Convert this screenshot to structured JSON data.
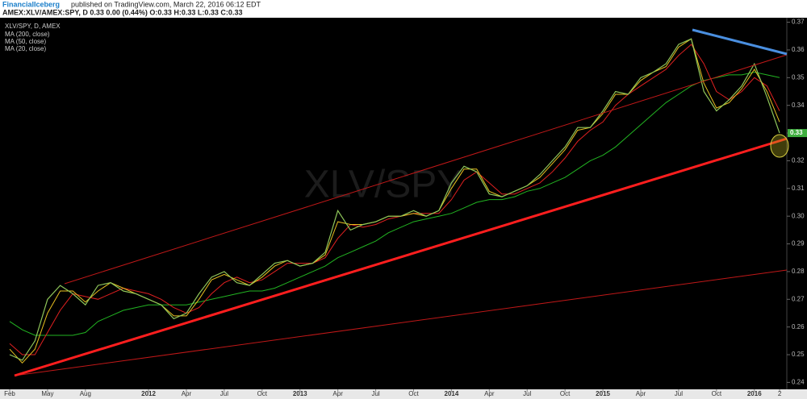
{
  "header": {
    "author": "FinancialIceberg",
    "published": "published on TradingView.com, March 22, 2016 06:12 EDT",
    "quote": "AMEX:XLV/AMEX:SPY, D 0.33 0.00 (0.44%) O:0.33 H:0.33 L:0.33 C:0.33"
  },
  "chart_data": {
    "type": "line",
    "title": "XLV/SPY, D, AMEX",
    "watermark": "XLV/SPY",
    "categories": [
      "Feb",
      null,
      null,
      "May",
      null,
      null,
      "Aug",
      null,
      null,
      null,
      null,
      "2012",
      null,
      null,
      "Apr",
      null,
      null,
      "Jul",
      null,
      null,
      "Oct",
      null,
      null,
      "2013",
      null,
      null,
      "Apr",
      null,
      null,
      "Jul",
      null,
      null,
      "Oct",
      null,
      null,
      "2014",
      null,
      null,
      "Apr",
      null,
      null,
      "Jul",
      null,
      null,
      "Oct",
      null,
      null,
      "2015",
      null,
      null,
      "Apr",
      null,
      null,
      "Jul",
      null,
      null,
      "Oct",
      null,
      null,
      "2016",
      null,
      "2"
    ],
    "series": [
      {
        "name": "XLV/SPY",
        "color": "#8fc65a",
        "values": [
          0.25,
          0.248,
          0.255,
          0.27,
          0.275,
          0.272,
          0.268,
          0.275,
          0.276,
          0.273,
          0.272,
          0.27,
          0.268,
          0.263,
          0.265,
          0.272,
          0.278,
          0.28,
          0.276,
          0.275,
          0.279,
          0.283,
          0.284,
          0.282,
          0.283,
          0.287,
          0.302,
          0.295,
          0.297,
          0.298,
          0.3,
          0.3,
          0.302,
          0.3,
          0.302,
          0.312,
          0.318,
          0.316,
          0.308,
          0.307,
          0.309,
          0.311,
          0.315,
          0.32,
          0.325,
          0.332,
          0.332,
          0.338,
          0.345,
          0.344,
          0.35,
          0.352,
          0.355,
          0.362,
          0.364,
          0.345,
          0.338,
          0.342,
          0.347,
          0.355,
          0.343,
          0.33
        ]
      },
      {
        "name": "MA (200, close)",
        "color": "#22b422",
        "values": [
          0.262,
          0.259,
          0.257,
          0.257,
          0.257,
          0.257,
          0.258,
          0.262,
          0.264,
          0.266,
          0.267,
          0.268,
          0.268,
          0.268,
          0.268,
          0.269,
          0.27,
          0.271,
          0.272,
          0.273,
          0.273,
          0.274,
          0.276,
          0.278,
          0.28,
          0.282,
          0.285,
          0.287,
          0.289,
          0.291,
          0.294,
          0.296,
          0.298,
          0.299,
          0.3,
          0.301,
          0.303,
          0.305,
          0.306,
          0.306,
          0.307,
          0.309,
          0.31,
          0.312,
          0.314,
          0.317,
          0.32,
          0.322,
          0.325,
          0.329,
          0.333,
          0.337,
          0.341,
          0.344,
          0.347,
          0.349,
          0.35,
          0.351,
          0.351,
          0.352,
          0.351,
          0.35
        ]
      },
      {
        "name": "MA (50, close)",
        "color": "#e02020",
        "values": [
          0.254,
          0.25,
          0.25,
          0.258,
          0.266,
          0.272,
          0.271,
          0.27,
          0.272,
          0.274,
          0.273,
          0.272,
          0.27,
          0.267,
          0.265,
          0.267,
          0.272,
          0.276,
          0.278,
          0.276,
          0.277,
          0.28,
          0.283,
          0.283,
          0.283,
          0.285,
          0.292,
          0.297,
          0.296,
          0.297,
          0.299,
          0.3,
          0.301,
          0.301,
          0.301,
          0.306,
          0.313,
          0.316,
          0.312,
          0.308,
          0.308,
          0.31,
          0.312,
          0.316,
          0.321,
          0.327,
          0.331,
          0.334,
          0.34,
          0.344,
          0.347,
          0.35,
          0.353,
          0.358,
          0.362,
          0.355,
          0.345,
          0.342,
          0.345,
          0.35,
          0.347,
          0.338
        ]
      },
      {
        "name": "MA (20, close)",
        "color": "#e8c020",
        "values": [
          0.252,
          0.247,
          0.252,
          0.265,
          0.273,
          0.273,
          0.269,
          0.273,
          0.276,
          0.274,
          0.272,
          0.27,
          0.268,
          0.264,
          0.264,
          0.27,
          0.277,
          0.279,
          0.277,
          0.275,
          0.278,
          0.282,
          0.284,
          0.282,
          0.283,
          0.286,
          0.298,
          0.297,
          0.297,
          0.298,
          0.3,
          0.3,
          0.301,
          0.3,
          0.302,
          0.31,
          0.317,
          0.317,
          0.309,
          0.307,
          0.309,
          0.311,
          0.314,
          0.319,
          0.324,
          0.331,
          0.332,
          0.337,
          0.344,
          0.344,
          0.349,
          0.352,
          0.354,
          0.361,
          0.364,
          0.348,
          0.339,
          0.341,
          0.346,
          0.353,
          0.345,
          0.334
        ]
      }
    ],
    "last_price": 0.33,
    "ylim": [
      0.2375,
      0.3725
    ],
    "yticks": [
      0.24,
      0.25,
      0.26,
      0.27,
      0.28,
      0.29,
      {
        "value": 0.3,
        "label": "0.30"
      },
      0.31,
      0.32,
      0.33,
      0.34,
      0.35,
      0.36,
      0.37
    ]
  }
}
